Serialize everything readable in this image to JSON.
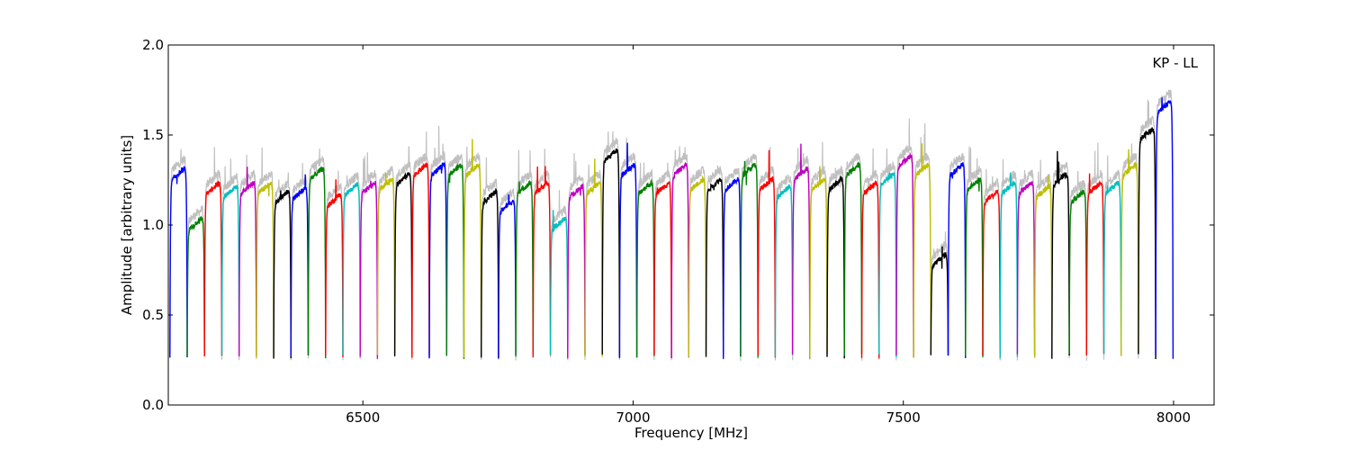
{
  "chart_data": {
    "type": "line",
    "title": "",
    "xlabel": "Frequency [MHz]",
    "ylabel": "Amplitude [arbitrary units]",
    "annotation": "KP - LL",
    "xlim": [
      6140,
      8075
    ],
    "ylim": [
      0.0,
      2.0
    ],
    "x_ticks": [
      6500,
      7000,
      7500,
      8000
    ],
    "x_tick_labels": [
      "6500",
      "7000",
      "7500",
      "8000"
    ],
    "y_ticks": [
      0.0,
      0.5,
      1.0,
      1.5,
      2.0
    ],
    "y_tick_labels": [
      "0.0",
      "0.5",
      "1.0",
      "1.5",
      "2.0"
    ],
    "grid": false,
    "legend": "none",
    "color_cycle": [
      "#0000ff",
      "#008000",
      "#ff0000",
      "#00bfbf",
      "#bf00bf",
      "#bfbf00",
      "#000000"
    ],
    "background_series_color": "#c0c0c0",
    "channel_width_mhz": 32,
    "first_channel_start_mhz": 6143,
    "channels": [
      {
        "color": "#0000ff",
        "level": 1.28
      },
      {
        "color": "#008000",
        "level": 1.0
      },
      {
        "color": "#ff0000",
        "level": 1.2
      },
      {
        "color": "#00bfbf",
        "level": 1.18
      },
      {
        "color": "#bf00bf",
        "level": 1.2
      },
      {
        "color": "#bfbf00",
        "level": 1.2
      },
      {
        "color": "#000000",
        "level": 1.15
      },
      {
        "color": "#0000ff",
        "level": 1.17
      },
      {
        "color": "#008000",
        "level": 1.28
      },
      {
        "color": "#ff0000",
        "level": 1.13
      },
      {
        "color": "#00bfbf",
        "level": 1.19
      },
      {
        "color": "#bf00bf",
        "level": 1.2
      },
      {
        "color": "#bfbf00",
        "level": 1.22
      },
      {
        "color": "#000000",
        "level": 1.25
      },
      {
        "color": "#ff0000",
        "level": 1.3
      },
      {
        "color": "#0000ff",
        "level": 1.3
      },
      {
        "color": "#008000",
        "level": 1.3
      },
      {
        "color": "#bfbf00",
        "level": 1.3
      },
      {
        "color": "#000000",
        "level": 1.15
      },
      {
        "color": "#0000ff",
        "level": 1.1
      },
      {
        "color": "#008000",
        "level": 1.2
      },
      {
        "color": "#ff0000",
        "level": 1.2
      },
      {
        "color": "#00bfbf",
        "level": 1.0
      },
      {
        "color": "#bf00bf",
        "level": 1.18
      },
      {
        "color": "#bfbf00",
        "level": 1.2
      },
      {
        "color": "#000000",
        "level": 1.38
      },
      {
        "color": "#0000ff",
        "level": 1.3
      },
      {
        "color": "#008000",
        "level": 1.2
      },
      {
        "color": "#ff0000",
        "level": 1.2
      },
      {
        "color": "#bf00bf",
        "level": 1.3
      },
      {
        "color": "#bfbf00",
        "level": 1.22
      },
      {
        "color": "#000000",
        "level": 1.22
      },
      {
        "color": "#0000ff",
        "level": 1.22
      },
      {
        "color": "#008000",
        "level": 1.3
      },
      {
        "color": "#ff0000",
        "level": 1.22
      },
      {
        "color": "#00bfbf",
        "level": 1.18
      },
      {
        "color": "#bf00bf",
        "level": 1.28
      },
      {
        "color": "#bfbf00",
        "level": 1.22
      },
      {
        "color": "#000000",
        "level": 1.22
      },
      {
        "color": "#008000",
        "level": 1.3
      },
      {
        "color": "#ff0000",
        "level": 1.2
      },
      {
        "color": "#00bfbf",
        "level": 1.25
      },
      {
        "color": "#bf00bf",
        "level": 1.35
      },
      {
        "color": "#bfbf00",
        "level": 1.3
      },
      {
        "color": "#000000",
        "level": 0.8
      },
      {
        "color": "#0000ff",
        "level": 1.3
      },
      {
        "color": "#008000",
        "level": 1.22
      },
      {
        "color": "#ff0000",
        "level": 1.15
      },
      {
        "color": "#00bfbf",
        "level": 1.2
      },
      {
        "color": "#bf00bf",
        "level": 1.2
      },
      {
        "color": "#bfbf00",
        "level": 1.18
      },
      {
        "color": "#000000",
        "level": 1.25
      },
      {
        "color": "#008000",
        "level": 1.15
      },
      {
        "color": "#ff0000",
        "level": 1.2
      },
      {
        "color": "#00bfbf",
        "level": 1.2
      },
      {
        "color": "#bfbf00",
        "level": 1.3
      },
      {
        "color": "#000000",
        "level": 1.5
      },
      {
        "color": "#0000ff",
        "level": 1.65
      }
    ]
  }
}
